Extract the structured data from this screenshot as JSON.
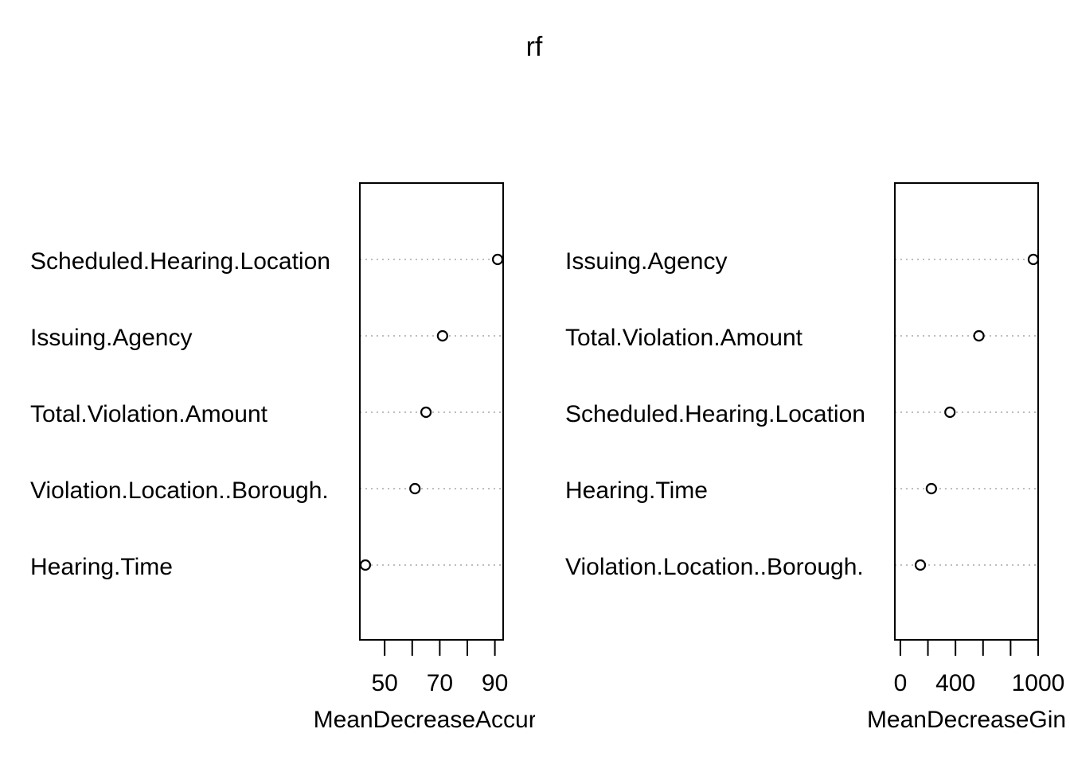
{
  "chart_data": {
    "title": "rf",
    "panels": [
      {
        "type": "scatter",
        "xlabel": "MeanDecreaseAccuracy",
        "xlabel_visible": "MeanDecreaseAccura",
        "xlim": [
          41,
          93
        ],
        "xticks": [
          50,
          60,
          70,
          80,
          90
        ],
        "xtick_labels": [
          "50",
          "70",
          "90"
        ],
        "labeled_ticks": [
          50,
          70,
          90
        ],
        "categories": [
          "Scheduled.Hearing.Location",
          "Issuing.Agency",
          "Total.Violation.Amount",
          "Violation.Location..Borough.",
          "Hearing.Time"
        ],
        "values": [
          91,
          71,
          65,
          61,
          43
        ]
      },
      {
        "type": "scatter",
        "xlabel": "MeanDecreaseGini",
        "xlabel_visible": "MeanDecreaseGin",
        "xlim": [
          -40,
          1000
        ],
        "xticks": [
          0,
          200,
          400,
          600,
          800,
          1000
        ],
        "xtick_labels": [
          "0",
          "400",
          "1000"
        ],
        "labeled_ticks": [
          0,
          400,
          1000
        ],
        "categories": [
          "Issuing.Agency",
          "Total.Violation.Amount",
          "Scheduled.Hearing.Location",
          "Hearing.Time",
          "Violation.Location..Borough."
        ],
        "values": [
          965,
          570,
          360,
          225,
          145
        ]
      }
    ]
  }
}
